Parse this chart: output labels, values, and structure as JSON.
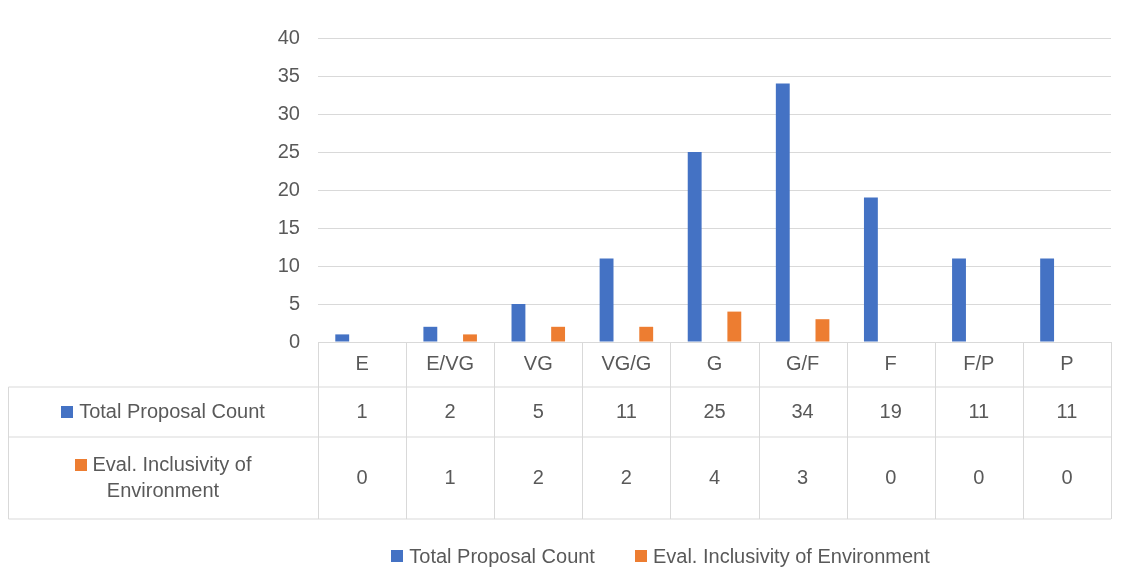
{
  "chart_data": {
    "type": "bar",
    "categories": [
      "E",
      "E/VG",
      "VG",
      "VG/G",
      "G",
      "G/F",
      "F",
      "F/P",
      "P"
    ],
    "series": [
      {
        "name": "Total Proposal Count",
        "color": "#4472c4",
        "values": [
          1,
          2,
          5,
          11,
          25,
          34,
          19,
          11,
          11
        ]
      },
      {
        "name": "Eval. Inclusivity of Environment",
        "color": "#ed7d31",
        "values": [
          0,
          1,
          2,
          2,
          4,
          3,
          0,
          0,
          0
        ]
      }
    ],
    "ylim": [
      0,
      40
    ],
    "yticks": [
      0,
      5,
      10,
      15,
      20,
      25,
      30,
      35,
      40
    ],
    "grid": "y",
    "legend": "bottom",
    "data_labels": true
  }
}
